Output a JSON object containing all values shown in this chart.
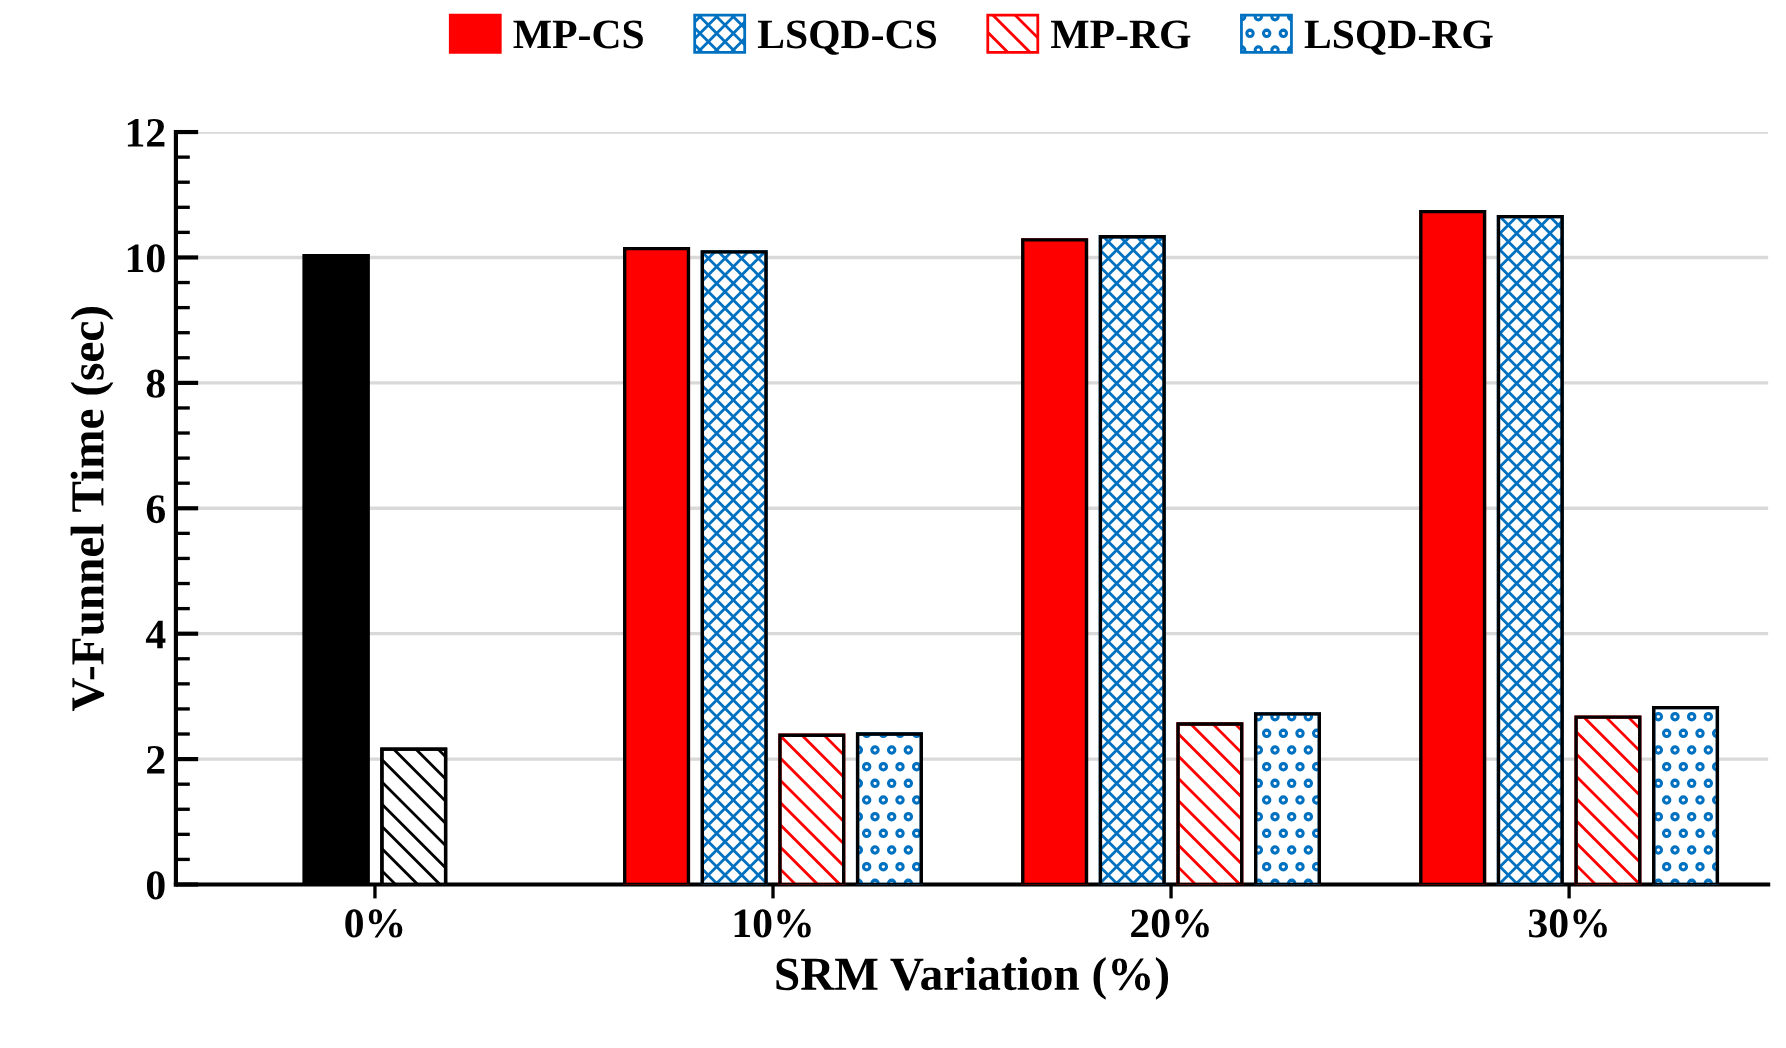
{
  "chart_data": {
    "type": "bar",
    "xlabel": "SRM Variation (%)",
    "ylabel": "V-Funnel Time (sec)",
    "categories": [
      "0%",
      "10%",
      "20%",
      "30%"
    ],
    "series": [
      {
        "name": "MP-CS",
        "color": "#ff0000",
        "colors": [
          "#000000",
          "#ff0000",
          "#ff0000",
          "#ff0000"
        ],
        "values": [
          10.03,
          10.14,
          10.28,
          10.73
        ]
      },
      {
        "name": "LSQD-CS",
        "color": "#0070c0",
        "values": [
          null,
          10.09,
          10.33,
          10.65
        ]
      },
      {
        "name": "MP-RG",
        "color": "#ff0000",
        "colors": [
          "#000000",
          "#ff0000",
          "#ff0000",
          "#ff0000"
        ],
        "values": [
          2.16,
          2.38,
          2.56,
          2.67
        ]
      },
      {
        "name": "LSQD-RG",
        "color": "#0070c0",
        "values": [
          null,
          2.4,
          2.72,
          2.82
        ]
      }
    ],
    "ylim": [
      0,
      12
    ],
    "yticks": [
      0,
      2,
      4,
      6,
      8,
      10,
      12
    ],
    "grid": "y",
    "legend": "top"
  }
}
